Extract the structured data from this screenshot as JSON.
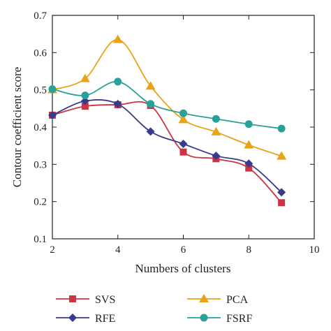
{
  "chart_data": {
    "type": "line",
    "title": "",
    "xlabel": "Numbers of clusters",
    "ylabel": "Contour coefficient score",
    "xlim": [
      2,
      10
    ],
    "ylim": [
      0.1,
      0.7
    ],
    "xticks": [
      "2",
      "4",
      "6",
      "8",
      "10"
    ],
    "yticks": [
      "0.1",
      "0.2",
      "0.3",
      "0.4",
      "0.5",
      "0.6",
      "0.7"
    ],
    "grid": false,
    "legend_position": "bottom",
    "x": [
      2,
      3,
      4,
      5,
      6,
      7,
      8,
      9
    ],
    "series": [
      {
        "name": "SVS",
        "marker": "square",
        "color": "#cc3344",
        "values": [
          0.432,
          0.456,
          0.46,
          0.458,
          0.333,
          0.315,
          0.29,
          0.197
        ]
      },
      {
        "name": "RFE",
        "marker": "diamond",
        "color": "#3a3a8c",
        "values": [
          0.432,
          0.47,
          0.462,
          0.388,
          0.355,
          0.323,
          0.302,
          0.225
        ]
      },
      {
        "name": "PCA",
        "marker": "triangle",
        "color": "#e8a317",
        "values": [
          0.5,
          0.53,
          0.635,
          0.51,
          0.42,
          0.387,
          0.352,
          0.322
        ]
      },
      {
        "name": "FSRF",
        "marker": "circle",
        "color": "#2aa198",
        "values": [
          0.502,
          0.485,
          0.522,
          0.462,
          0.437,
          0.422,
          0.408,
          0.396
        ]
      }
    ]
  }
}
